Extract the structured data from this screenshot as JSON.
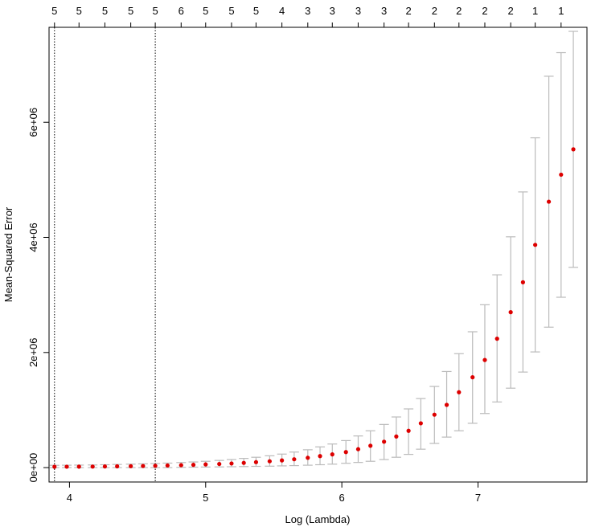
{
  "chart_data": {
    "type": "scatter",
    "xlabel": "Log (Lambda)",
    "ylabel": "Mean-Squared Error",
    "xlim": [
      3.85,
      7.8
    ],
    "ylim": [
      -250000,
      7650000
    ],
    "x_ticks": [
      {
        "value": 4,
        "label": "4"
      },
      {
        "value": 5,
        "label": "5"
      },
      {
        "value": 6,
        "label": "6"
      },
      {
        "value": 7,
        "label": "7"
      }
    ],
    "y_ticks": [
      {
        "value": 0,
        "label": "0e+00"
      },
      {
        "value": 2000000,
        "label": "2e+06"
      },
      {
        "value": 4000000,
        "label": "4e+06"
      },
      {
        "value": 6000000,
        "label": "6e+06"
      }
    ],
    "top_labels": [
      "5",
      "5",
      "5",
      "5",
      "5",
      "6",
      "5",
      "5",
      "5",
      "4",
      "3",
      "3",
      "3",
      "3",
      "2",
      "2",
      "2",
      "2",
      "2",
      "1",
      "1"
    ],
    "vlines": [
      3.89,
      4.63
    ],
    "points": [
      {
        "x": 3.89,
        "y": 15000,
        "lo": 0,
        "hi": 40000
      },
      {
        "x": 3.98,
        "y": 16000,
        "lo": 0,
        "hi": 42000
      },
      {
        "x": 4.07,
        "y": 17000,
        "lo": 0,
        "hi": 44000
      },
      {
        "x": 4.17,
        "y": 18000,
        "lo": 0,
        "hi": 46000
      },
      {
        "x": 4.26,
        "y": 20000,
        "lo": 0,
        "hi": 50000
      },
      {
        "x": 4.35,
        "y": 22000,
        "lo": 0,
        "hi": 55000
      },
      {
        "x": 4.45,
        "y": 25000,
        "lo": 0,
        "hi": 60000
      },
      {
        "x": 4.54,
        "y": 28000,
        "lo": 0,
        "hi": 65000
      },
      {
        "x": 4.63,
        "y": 32000,
        "lo": 0,
        "hi": 70000
      },
      {
        "x": 4.72,
        "y": 37000,
        "lo": 0,
        "hi": 78000
      },
      {
        "x": 4.82,
        "y": 42000,
        "lo": 5000,
        "hi": 88000
      },
      {
        "x": 4.91,
        "y": 48000,
        "lo": 8000,
        "hi": 98000
      },
      {
        "x": 5.0,
        "y": 55000,
        "lo": 10000,
        "hi": 110000
      },
      {
        "x": 5.1,
        "y": 63000,
        "lo": 12000,
        "hi": 125000
      },
      {
        "x": 5.19,
        "y": 72000,
        "lo": 15000,
        "hi": 140000
      },
      {
        "x": 5.28,
        "y": 82000,
        "lo": 18000,
        "hi": 160000
      },
      {
        "x": 5.37,
        "y": 95000,
        "lo": 22000,
        "hi": 180000
      },
      {
        "x": 5.47,
        "y": 110000,
        "lo": 25000,
        "hi": 205000
      },
      {
        "x": 5.56,
        "y": 125000,
        "lo": 30000,
        "hi": 235000
      },
      {
        "x": 5.65,
        "y": 145000,
        "lo": 35000,
        "hi": 270000
      },
      {
        "x": 5.75,
        "y": 170000,
        "lo": 42000,
        "hi": 310000
      },
      {
        "x": 5.84,
        "y": 200000,
        "lo": 50000,
        "hi": 360000
      },
      {
        "x": 5.93,
        "y": 230000,
        "lo": 60000,
        "hi": 410000
      },
      {
        "x": 6.03,
        "y": 270000,
        "lo": 75000,
        "hi": 470000
      },
      {
        "x": 6.12,
        "y": 320000,
        "lo": 90000,
        "hi": 550000
      },
      {
        "x": 6.21,
        "y": 380000,
        "lo": 110000,
        "hi": 640000
      },
      {
        "x": 6.31,
        "y": 450000,
        "lo": 140000,
        "hi": 750000
      },
      {
        "x": 6.4,
        "y": 540000,
        "lo": 180000,
        "hi": 880000
      },
      {
        "x": 6.49,
        "y": 640000,
        "lo": 230000,
        "hi": 1020000
      },
      {
        "x": 6.58,
        "y": 770000,
        "lo": 320000,
        "hi": 1200000
      },
      {
        "x": 6.68,
        "y": 920000,
        "lo": 420000,
        "hi": 1410000
      },
      {
        "x": 6.77,
        "y": 1090000,
        "lo": 530000,
        "hi": 1670000
      },
      {
        "x": 6.86,
        "y": 1310000,
        "lo": 640000,
        "hi": 1980000
      },
      {
        "x": 6.96,
        "y": 1570000,
        "lo": 770000,
        "hi": 2360000
      },
      {
        "x": 7.05,
        "y": 1870000,
        "lo": 940000,
        "hi": 2830000
      },
      {
        "x": 7.14,
        "y": 2240000,
        "lo": 1140000,
        "hi": 3350000
      },
      {
        "x": 7.24,
        "y": 2700000,
        "lo": 1380000,
        "hi": 4010000
      },
      {
        "x": 7.33,
        "y": 3220000,
        "lo": 1660000,
        "hi": 4790000
      },
      {
        "x": 7.42,
        "y": 3870000,
        "lo": 2010000,
        "hi": 5730000
      },
      {
        "x": 7.52,
        "y": 4620000,
        "lo": 2440000,
        "hi": 6800000
      },
      {
        "x": 7.61,
        "y": 5090000,
        "lo": 2960000,
        "hi": 7210000
      },
      {
        "x": 7.7,
        "y": 5530000,
        "lo": 3480000,
        "hi": 7580000
      }
    ],
    "colors": {
      "point": "#dd0000",
      "errorbar": "#bbbbbb",
      "vline": "#000000",
      "frame": "#000000"
    }
  }
}
